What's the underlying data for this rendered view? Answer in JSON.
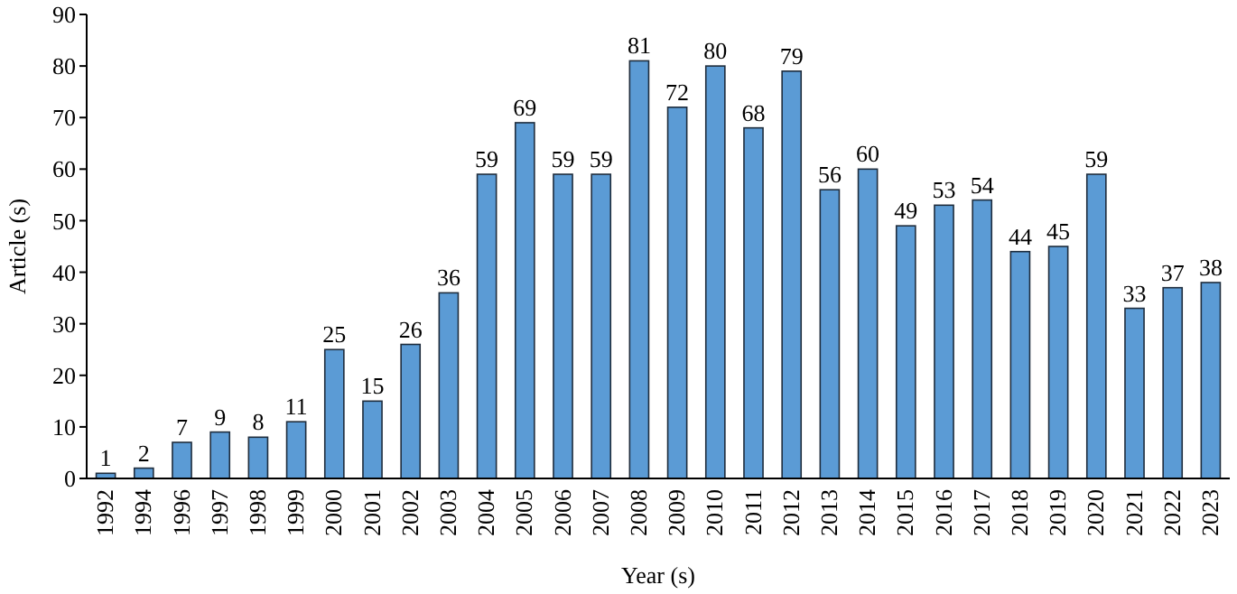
{
  "chart_data": {
    "type": "bar",
    "xlabel": "Year (s)",
    "ylabel": "Article (s)",
    "categories": [
      "1992",
      "1994",
      "1996",
      "1997",
      "1998",
      "1999",
      "2000",
      "2001",
      "2002",
      "2003",
      "2004",
      "2005",
      "2006",
      "2007",
      "2008",
      "2009",
      "2010",
      "2011",
      "2012",
      "2013",
      "2014",
      "2015",
      "2016",
      "2017",
      "2018",
      "2019",
      "2020",
      "2021",
      "2022",
      "2023"
    ],
    "values": [
      1,
      2,
      7,
      9,
      8,
      11,
      25,
      15,
      26,
      36,
      59,
      69,
      59,
      59,
      81,
      72,
      80,
      68,
      79,
      56,
      60,
      49,
      53,
      54,
      44,
      45,
      59,
      33,
      37,
      38
    ],
    "color": "#5b9bd5",
    "ylim": [
      0,
      90
    ],
    "yticks": [
      0,
      10,
      20,
      30,
      40,
      50,
      60,
      70,
      80,
      90
    ],
    "data_labels": true,
    "grid": false
  }
}
